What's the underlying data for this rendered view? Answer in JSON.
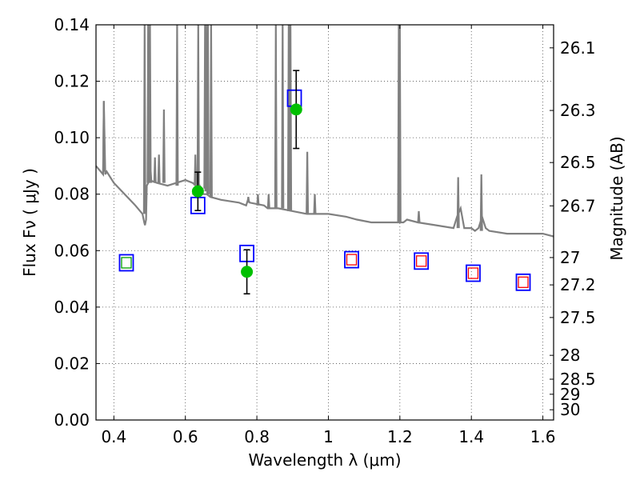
{
  "chart_data": {
    "type": "scatter",
    "xlabel": "Wavelength  λ (μm)",
    "ylabel": "Flux  Fν  ( μJy )",
    "y2label": "Magnitude (AB)",
    "xlim": [
      0.35,
      1.63
    ],
    "ylim": [
      0.0,
      0.14
    ],
    "grid": true,
    "x_ticks": [
      0.4,
      0.6,
      0.8,
      1.0,
      1.2,
      1.4,
      1.6
    ],
    "x_tick_labels": [
      "0.4",
      "0.6",
      "0.8",
      "1",
      "1.2",
      "1.4",
      "1.6"
    ],
    "y_ticks": [
      0.0,
      0.02,
      0.04,
      0.06,
      0.08,
      0.1,
      0.12,
      0.14
    ],
    "y_tick_labels": [
      "0.00",
      "0.02",
      "0.04",
      "0.06",
      "0.08",
      "0.10",
      "0.12",
      "0.14"
    ],
    "mag_ticks": [
      26.1,
      26.3,
      26.5,
      26.7,
      27,
      27.2,
      27.5,
      28,
      28.5,
      29,
      30
    ],
    "mag_tick_labels": [
      "26.1",
      "26.3",
      "26.5",
      "26.7",
      "27",
      "27.2",
      "27.5",
      "28",
      "28.5",
      "29",
      "30"
    ],
    "colors": {
      "spectrum": "#808080",
      "model_box": "#0000ff",
      "observed": "#00c000",
      "upper_inner": "#ff0000",
      "blue_inner": "#00a000",
      "errorbar": "#000000"
    },
    "series": [
      {
        "type": "line",
        "x": [
          0.35,
          0.37,
          0.372,
          0.376,
          0.38,
          0.4,
          0.43,
          0.46,
          0.48,
          0.485,
          0.487,
          0.49,
          0.492,
          0.5,
          0.52,
          0.55,
          0.6,
          0.62,
          0.63,
          0.635,
          0.64,
          0.65,
          0.66,
          0.67,
          0.7,
          0.75,
          0.77,
          0.775,
          0.78,
          0.82,
          0.83,
          0.84,
          0.86,
          0.9,
          0.94,
          0.96,
          1.0,
          1.05,
          1.08,
          1.12,
          1.15,
          1.18,
          1.19,
          1.2,
          1.21,
          1.22,
          1.25,
          1.3,
          1.35,
          1.36,
          1.37,
          1.38,
          1.4,
          1.41,
          1.42,
          1.43,
          1.44,
          1.45,
          1.5,
          1.55,
          1.6,
          1.63
        ],
        "y": [
          0.09,
          0.087,
          0.113,
          0.087,
          0.088,
          0.084,
          0.08,
          0.076,
          0.073,
          0.07,
          0.069,
          0.071,
          0.083,
          0.085,
          0.084,
          0.083,
          0.085,
          0.084,
          0.083,
          0.082,
          0.083,
          0.08,
          0.08,
          0.079,
          0.078,
          0.077,
          0.076,
          0.078,
          0.077,
          0.076,
          0.075,
          0.075,
          0.075,
          0.074,
          0.073,
          0.073,
          0.073,
          0.072,
          0.071,
          0.07,
          0.07,
          0.07,
          0.07,
          0.07,
          0.07,
          0.071,
          0.07,
          0.069,
          0.068,
          0.072,
          0.075,
          0.068,
          0.068,
          0.067,
          0.068,
          0.072,
          0.068,
          0.067,
          0.066,
          0.066,
          0.066,
          0.065
        ]
      },
      {
        "type": "model_boxes",
        "x": [
          0.435,
          0.635,
          0.772,
          0.905,
          1.065,
          1.26,
          1.405,
          1.545
        ],
        "y": [
          0.0557,
          0.076,
          0.059,
          0.114,
          0.0568,
          0.0563,
          0.052,
          0.0488
        ]
      },
      {
        "type": "observed",
        "x": [
          0.635,
          0.772,
          0.91
        ],
        "y": [
          0.081,
          0.0525,
          0.11
        ],
        "yerr": [
          0.0068,
          0.0078,
          0.0138
        ]
      },
      {
        "type": "upper_limits",
        "x": [
          1.065,
          1.26,
          1.405,
          1.545
        ],
        "y": [
          0.0568,
          0.0563,
          0.052,
          0.0488
        ]
      },
      {
        "type": "blue_limit",
        "x": [
          0.435
        ],
        "y": [
          0.0557
        ]
      }
    ]
  }
}
